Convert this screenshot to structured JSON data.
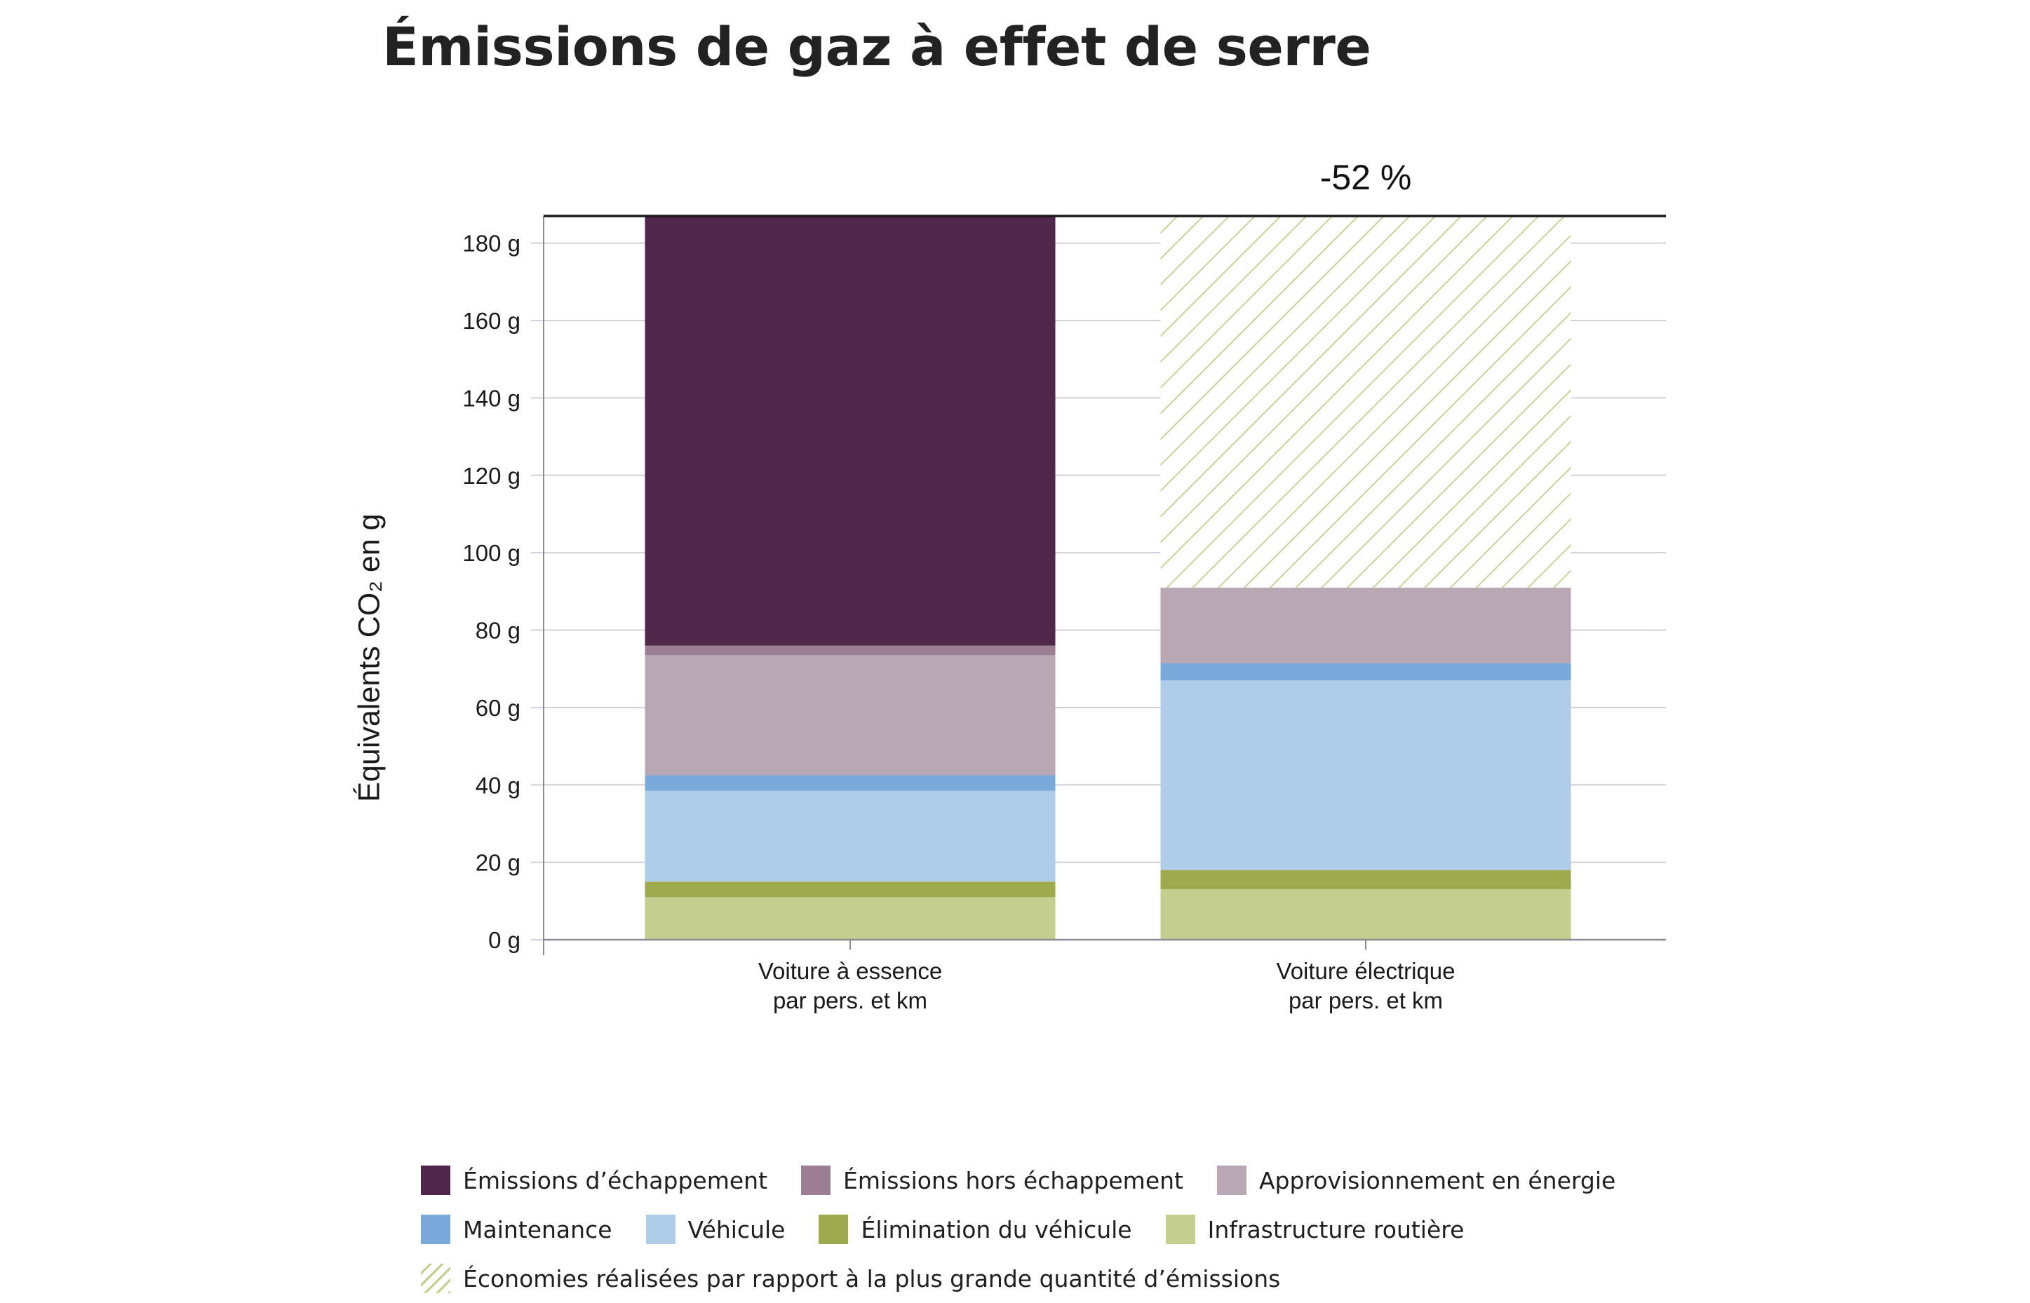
{
  "title": "Émissions de gaz à effet de serre",
  "colors": {
    "echappement": "#50264a",
    "hors_echappement": "#9b7f93",
    "energie": "#b9a7b3",
    "maintenance": "#78a9da",
    "vehicule": "#afcde9",
    "elimination": "#9eaa4e",
    "infrastructure": "#c4ce8f",
    "economies": "#c4ce8f"
  },
  "chart_data": {
    "type": "bar",
    "stacked": true,
    "ylabel": "Équivalents CO₂ en g",
    "ylim": [
      0,
      187
    ],
    "yticks": [
      "0 g",
      "20 g",
      "40 g",
      "60 g",
      "80 g",
      "100 g",
      "120 g",
      "140 g",
      "160 g",
      "180 g"
    ],
    "grid": true,
    "categories": [
      [
        "Voiture à essence",
        "par pers. et km"
      ],
      [
        "Voiture électrique",
        "par pers. et km"
      ]
    ],
    "series": [
      {
        "key": "infrastructure",
        "name": "Infrastructure routière",
        "values": [
          11,
          13
        ]
      },
      {
        "key": "elimination",
        "name": "Élimination du véhicule",
        "values": [
          4,
          5
        ]
      },
      {
        "key": "vehicule",
        "name": "Véhicule",
        "values": [
          23.5,
          49
        ]
      },
      {
        "key": "maintenance",
        "name": "Maintenance",
        "values": [
          4,
          4.5
        ]
      },
      {
        "key": "energie",
        "name": "Approvisionnement en énergie",
        "values": [
          31,
          19.5
        ]
      },
      {
        "key": "hors_echappement",
        "name": "Émissions hors échappement",
        "values": [
          2.5,
          0
        ]
      },
      {
        "key": "echappement",
        "name": "Émissions d’échappement",
        "values": [
          111,
          0
        ]
      },
      {
        "key": "economies",
        "name": "Économies réalisées par rapport à la plus grande quantité d’émissions",
        "values": [
          0,
          96
        ]
      }
    ],
    "annotation": "-52 %",
    "legend_position": "bottom"
  },
  "legend": {
    "rows": [
      [
        {
          "key": "echappement",
          "label": "Émissions d’échappement"
        },
        {
          "key": "hors_echappement",
          "label": "Émissions hors échappement"
        },
        {
          "key": "energie",
          "label": "Approvisionnement en énergie"
        }
      ],
      [
        {
          "key": "maintenance",
          "label": "Maintenance"
        },
        {
          "key": "vehicule",
          "label": "Véhicule"
        },
        {
          "key": "elimination",
          "label": "Élimination du véhicule"
        },
        {
          "key": "infrastructure",
          "label": "Infrastructure routière"
        }
      ],
      [
        {
          "key": "economies",
          "label": "Économies réalisées par rapport à la plus grande quantité d’émissions",
          "hatched": true
        }
      ]
    ]
  }
}
